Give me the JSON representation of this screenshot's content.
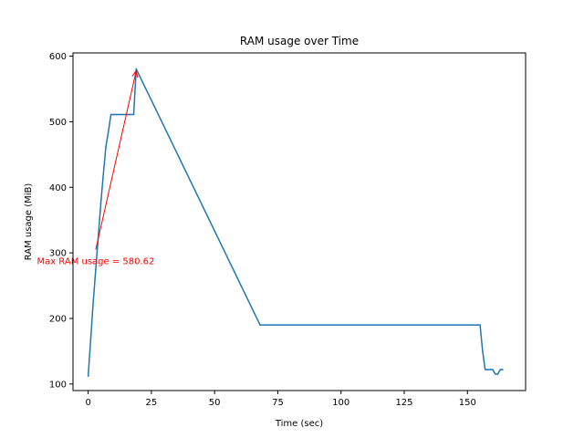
{
  "chart_data": {
    "type": "line",
    "title": "RAM usage over Time",
    "xlabel": "Time (sec)",
    "ylabel": "RAM usage (MiB)",
    "xlim": [
      -6,
      173
    ],
    "ylim": [
      90,
      605
    ],
    "xticks": [
      0,
      25,
      50,
      75,
      100,
      125,
      150
    ],
    "yticks": [
      100,
      200,
      300,
      400,
      500,
      600
    ],
    "grid": false,
    "colors": {
      "line": "#1f77b4",
      "annotation": "#ff0000"
    },
    "series": [
      {
        "x": [
          0,
          1,
          2,
          3,
          4,
          5,
          6,
          7,
          8,
          9,
          10,
          11,
          12,
          13,
          14,
          15,
          16,
          17,
          18,
          19,
          68,
          154,
          155,
          156,
          157,
          158,
          159,
          160,
          161,
          162,
          163,
          164
        ],
        "y": [
          112,
          168,
          225,
          275,
          325,
          375,
          420,
          462,
          485,
          511,
          511,
          511,
          511,
          511,
          511,
          511,
          511,
          511,
          511,
          580.62,
          190,
          190,
          190,
          150,
          122,
          122,
          122,
          122,
          115,
          115,
          122,
          122
        ]
      }
    ],
    "annotation": {
      "text": "Max RAM usage = 580.62",
      "xy": [
        19,
        580.62
      ],
      "xytext": [
        3,
        305
      ]
    }
  }
}
